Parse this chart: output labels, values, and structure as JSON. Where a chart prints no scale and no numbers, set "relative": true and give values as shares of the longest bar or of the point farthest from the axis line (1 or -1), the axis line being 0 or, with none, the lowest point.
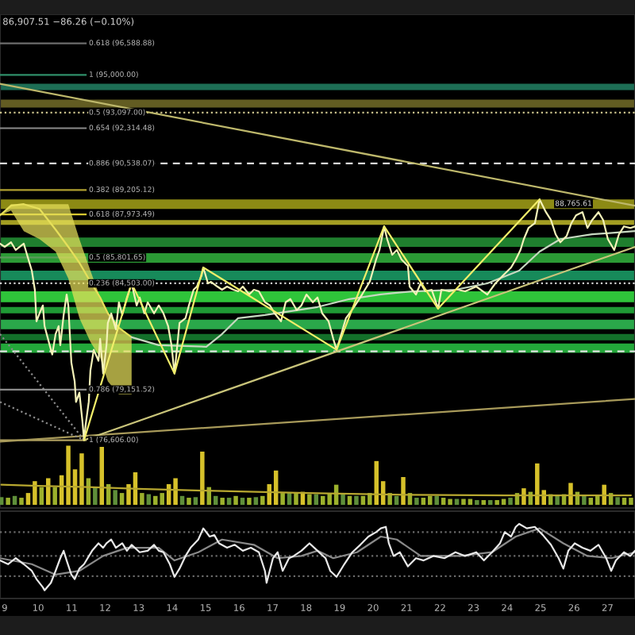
{
  "chart_data": [
    {
      "type": "line",
      "annotations": [
        "86,907.51 −86.26 (−0.10%)",
        {
          "text": "88,765.61",
          "x": 24.97,
          "y": 88730
        }
      ],
      "xlim": [
        8.86,
        27.82
      ],
      "ylim": [
        73190,
        98050
      ],
      "tick_labels": false,
      "bands": [
        {
          "axis": "y",
          "from": 94230,
          "to": 94550,
          "color": "#1d6e55"
        },
        {
          "axis": "y",
          "from": 93350,
          "to": 93750,
          "color": "#625c22"
        },
        {
          "axis": "y",
          "from": 88250,
          "to": 88730,
          "color": "#8c8a14"
        },
        {
          "axis": "y",
          "from": 87450,
          "to": 87690,
          "color": "#a39e22"
        },
        {
          "axis": "y",
          "from": 86340,
          "to": 86810,
          "color": "#1f7f2e"
        },
        {
          "axis": "y",
          "from": 85540,
          "to": 86020,
          "color": "#2b9a35"
        },
        {
          "axis": "y",
          "from": 84660,
          "to": 85140,
          "color": "#178a5a"
        },
        {
          "axis": "y",
          "from": 83550,
          "to": 84100,
          "color": "#2fc43a"
        },
        {
          "axis": "y",
          "from": 82990,
          "to": 83310,
          "color": "#1f9a35"
        },
        {
          "axis": "y",
          "from": 82190,
          "to": 82670,
          "color": "#2aa84a"
        },
        {
          "axis": "y",
          "from": 81630,
          "to": 81950,
          "color": "#13702a"
        },
        {
          "axis": "y",
          "from": 81000,
          "to": 81470,
          "color": "#23a83a"
        }
      ],
      "ref_lines": [
        {
          "axis": "y",
          "value": 96588.88,
          "label": "0.618 (96,588.88)",
          "color": "#6d6d6d"
        },
        {
          "axis": "y",
          "value": 95000,
          "label": "1 (95,000.00)",
          "color": "#2f8f6a"
        },
        {
          "axis": "y",
          "value": 93097,
          "label": "0.5 (93,097.00)",
          "color": "#c8c08a",
          "line_style": "dotted"
        },
        {
          "axis": "y",
          "value": 92314.48,
          "label": "0.654 (92,314.48)",
          "color": "#8a8a8a"
        },
        {
          "axis": "y",
          "value": 90538.07,
          "label": "0.886 (90,538.07)",
          "color": "#d8d8d8",
          "line_style": "dashed"
        },
        {
          "axis": "y",
          "value": 89205.12,
          "label": "0.382 (89,205.12)",
          "color": "#b0a030"
        },
        {
          "axis": "y",
          "value": 87973.49,
          "label": "0.618 (87,973.49)",
          "color": "#d8c830"
        },
        {
          "axis": "y",
          "value": 85801.65,
          "label": "0.5 (85,801.65)",
          "color": "#5a9a5a"
        },
        {
          "axis": "y",
          "value": 84503,
          "label": "0.236 (84,503.00)",
          "color": "#d0d0d0",
          "line_style": "dotted"
        },
        {
          "axis": "y",
          "value": 81075,
          "color": "#e0e0e0",
          "line_style": "dashed"
        },
        {
          "axis": "y",
          "value": 79151.52,
          "label": "0.786 (79,151.52)",
          "color": "#8a8a8a"
        },
        {
          "axis": "y",
          "value": 76606,
          "label": "1 (76,606.00)",
          "color": "#b0a060"
        }
      ],
      "series": [
        {
          "type": "line",
          "color": "#bdb76b",
          "x": [
            8.86,
            27.82
          ],
          "values": [
            94550,
            88410
          ]
        },
        {
          "type": "line",
          "color": "#a89a5a",
          "x": [
            8.86,
            27.82
          ],
          "values": [
            76530,
            78680
          ]
        },
        {
          "type": "line",
          "color": "#c9c47a",
          "x": [
            11.37,
            27.82
          ],
          "values": [
            76610,
            86340
          ]
        },
        {
          "type": "line",
          "color": "#8c8c8c",
          "line_style": "dotted",
          "x": [
            8.86,
            11.37
          ],
          "values": [
            81950,
            76610
          ]
        },
        {
          "type": "line",
          "color": "#8c8c8c",
          "line_style": "dotted",
          "x": [
            8.86,
            11.37
          ],
          "values": [
            78530,
            76610
          ]
        },
        {
          "type": "line",
          "color": "#e6df5a",
          "x": [
            8.86,
            9.19,
            9.57,
            10.04,
            10.52,
            10.9,
            11.23,
            11.56,
            11.85,
            12.08,
            12.41,
            12.79
          ],
          "values": [
            87930,
            88410,
            88490,
            88250,
            87210,
            86340,
            85540,
            84580,
            83790,
            82990,
            82270,
            81790
          ],
          "upper": [
            87930,
            88490,
            88490,
            88490,
            88490,
            88490,
            86730,
            85140,
            83790,
            82990,
            82270,
            81790
          ],
          "lower": [
            87930,
            88170,
            87130,
            86730,
            86100,
            84740,
            82750,
            81550,
            80760,
            79560,
            78920,
            78920
          ]
        },
        {
          "type": "line",
          "color": "#c6d8c0",
          "x": [
            12.79,
            13.6,
            15.02,
            15.49,
            15.97,
            16.77,
            17.72,
            18.34,
            19.29,
            20.23,
            21.18,
            22.46,
            23.41,
            24.36,
            24.97,
            25.59,
            26.54,
            27.82
          ],
          "values": [
            81790,
            81390,
            81310,
            81950,
            82750,
            82910,
            83150,
            83310,
            83710,
            83950,
            84100,
            84180,
            84500,
            85140,
            86100,
            86730,
            86970,
            87130
          ]
        },
        {
          "type": "line",
          "color": "#f4f2b8",
          "x": [
            8.86,
            9.0,
            9.19,
            9.33,
            9.57,
            9.71,
            9.81,
            9.9,
            9.95,
            10.04,
            10.14,
            10.19,
            10.38,
            10.42,
            10.52,
            10.61,
            10.66,
            10.76,
            10.85,
            10.9,
            10.99,
            11.09,
            11.13,
            11.23,
            11.32,
            11.37,
            11.42,
            11.51,
            11.56,
            11.66,
            11.8,
            11.85,
            11.94,
            12.04,
            12.08,
            12.18,
            12.32,
            12.41,
            12.51,
            12.65,
            12.79,
            12.94,
            13.03,
            13.17,
            13.27,
            13.46,
            13.6,
            13.74,
            13.88,
            13.98,
            14.07,
            14.22,
            14.4,
            14.5,
            14.64,
            14.74,
            14.88,
            14.93,
            15.07,
            15.16,
            15.35,
            15.49,
            15.64,
            15.83,
            15.97,
            16.11,
            16.3,
            16.44,
            16.59,
            16.77,
            16.92,
            17.06,
            17.25,
            17.39,
            17.53,
            17.72,
            17.86,
            18.01,
            18.2,
            18.34,
            18.48,
            18.67,
            18.81,
            18.91,
            19.05,
            19.19,
            19.43,
            19.67,
            19.9,
            20.09,
            20.19,
            20.33,
            20.42,
            20.57,
            20.71,
            20.85,
            21.04,
            21.09,
            21.28,
            21.42,
            21.56,
            21.75,
            21.94,
            22.04,
            22.27,
            22.51,
            22.75,
            23.08,
            23.41,
            23.65,
            23.88,
            24.12,
            24.26,
            24.4,
            24.5,
            24.64,
            24.83,
            24.97,
            25.16,
            25.31,
            25.45,
            25.59,
            25.78,
            25.92,
            26.06,
            26.25,
            26.4,
            26.54,
            26.73,
            26.87,
            27.01,
            27.2,
            27.34,
            27.49,
            27.68,
            27.82
          ],
          "values": [
            86500,
            86340,
            86570,
            86180,
            86500,
            85700,
            85140,
            84180,
            82590,
            82990,
            83390,
            82350,
            81160,
            80920,
            81950,
            82350,
            81390,
            82910,
            83940,
            83390,
            80520,
            79560,
            78530,
            79000,
            77570,
            76610,
            77410,
            78530,
            80120,
            81160,
            80600,
            81710,
            79960,
            81390,
            82510,
            82990,
            82190,
            83550,
            82910,
            83790,
            84500,
            83390,
            83790,
            82990,
            83550,
            82990,
            83390,
            82990,
            82350,
            81390,
            79960,
            82510,
            82750,
            83390,
            84180,
            84340,
            84900,
            85300,
            84500,
            84580,
            84340,
            84180,
            84340,
            84180,
            84100,
            84340,
            83940,
            84180,
            84100,
            83550,
            83390,
            82990,
            82590,
            83550,
            83710,
            83150,
            83390,
            83940,
            83550,
            83790,
            82990,
            82590,
            81710,
            81160,
            81950,
            82750,
            83310,
            83940,
            84580,
            85700,
            86180,
            87370,
            86730,
            85940,
            86180,
            85700,
            85380,
            84340,
            83940,
            84500,
            84100,
            84180,
            83230,
            84180,
            84100,
            84180,
            84100,
            84340,
            83940,
            84500,
            84900,
            85300,
            85700,
            86180,
            86730,
            87290,
            87530,
            88730,
            88090,
            87690,
            86970,
            86570,
            86890,
            87530,
            87930,
            88090,
            87290,
            87690,
            88090,
            87690,
            86730,
            86180,
            86970,
            87370,
            87290,
            87370
          ]
        },
        {
          "type": "line",
          "color": "#f2ee6a",
          "x": [
            11.37,
            12.79,
            14.07,
            14.93,
            18.91,
            20.33,
            21.94,
            24.97
          ],
          "values": [
            76610,
            84500,
            79960,
            85300,
            81160,
            87370,
            83230,
            88730
          ]
        }
      ]
    },
    {
      "type": "bar",
      "relative": true,
      "xlim": [
        8.86,
        27.82
      ],
      "tick_labels": false,
      "series": [
        {
          "type": "bar",
          "x": [
            8.9,
            9.1,
            9.3,
            9.5,
            9.7,
            9.9,
            10.1,
            10.3,
            10.5,
            10.7,
            10.9,
            11.1,
            11.3,
            11.5,
            11.7,
            11.9,
            12.1,
            12.3,
            12.5,
            12.7,
            12.9,
            13.1,
            13.3,
            13.5,
            13.7,
            13.9,
            14.1,
            14.3,
            14.5,
            14.7,
            14.9,
            15.1,
            15.3,
            15.5,
            15.7,
            15.9,
            16.1,
            16.3,
            16.5,
            16.7,
            16.9,
            17.1,
            17.3,
            17.5,
            17.7,
            17.9,
            18.1,
            18.3,
            18.5,
            18.7,
            18.9,
            19.1,
            19.3,
            19.5,
            19.7,
            19.9,
            20.1,
            20.3,
            20.5,
            20.7,
            20.9,
            21.1,
            21.3,
            21.5,
            21.7,
            21.9,
            22.1,
            22.3,
            22.5,
            22.7,
            22.9,
            23.1,
            23.3,
            23.5,
            23.7,
            23.9,
            24.1,
            24.3,
            24.5,
            24.7,
            24.9,
            25.1,
            25.3,
            25.5,
            25.7,
            25.9,
            26.1,
            26.3,
            26.5,
            26.7,
            26.9,
            27.1,
            27.3,
            27.5,
            27.7
          ],
          "values": [
            0.13,
            0.12,
            0.15,
            0.12,
            0.2,
            0.4,
            0.3,
            0.45,
            0.3,
            0.5,
            1,
            0.6,
            0.87,
            0.45,
            0.3,
            0.98,
            0.35,
            0.25,
            0.2,
            0.35,
            0.55,
            0.2,
            0.18,
            0.15,
            0.2,
            0.35,
            0.45,
            0.15,
            0.12,
            0.13,
            0.9,
            0.3,
            0.15,
            0.12,
            0.12,
            0.15,
            0.12,
            0.12,
            0.13,
            0.15,
            0.35,
            0.58,
            0.2,
            0.2,
            0.2,
            0.22,
            0.18,
            0.18,
            0.15,
            0.2,
            0.34,
            0.2,
            0.15,
            0.15,
            0.15,
            0.2,
            0.74,
            0.4,
            0.2,
            0.15,
            0.47,
            0.2,
            0.12,
            0.12,
            0.15,
            0.15,
            0.12,
            0.1,
            0.1,
            0.1,
            0.1,
            0.08,
            0.08,
            0.08,
            0.08,
            0.1,
            0.12,
            0.2,
            0.28,
            0.22,
            0.7,
            0.25,
            0.18,
            0.15,
            0.18,
            0.37,
            0.22,
            0.15,
            0.12,
            0.15,
            0.34,
            0.2,
            0.13,
            0.12,
            0.12
          ],
          "colors": [
            "#5f8f3a",
            "#9cb12c",
            "#5f8f3a",
            "#9cb12c",
            "#d6c12a",
            "#d6c12a",
            "#9cb12c",
            "#d6c12a",
            "#9cb12c",
            "#d6c12a",
            "#d6c12a",
            "#d6c12a",
            "#d6c12a",
            "#9cb12c",
            "#5f8f3a",
            "#d6c12a",
            "#9cb12c",
            "#5f8f3a",
            "#9cb12c",
            "#d6c12a",
            "#d6c12a",
            "#9cb12c",
            "#5f8f3a",
            "#9cb12c",
            "#9cb12c",
            "#d6c12a",
            "#d6c12a",
            "#5f8f3a",
            "#9cb12c",
            "#5f8f3a",
            "#d6c12a",
            "#9cb12c",
            "#5f8f3a",
            "#9cb12c",
            "#5f8f3a",
            "#9cb12c",
            "#5f8f3a",
            "#9cb12c",
            "#5f8f3a",
            "#9cb12c",
            "#d6c12a",
            "#d6c12a",
            "#9cb12c",
            "#5f8f3a",
            "#9cb12c",
            "#d6c12a",
            "#9cb12c",
            "#5f8f3a",
            "#9cb12c",
            "#9cb12c",
            "#9cb12c",
            "#5f8f3a",
            "#9cb12c",
            "#5f8f3a",
            "#9cb12c",
            "#9cb12c",
            "#d6c12a",
            "#d6c12a",
            "#9cb12c",
            "#5f8f3a",
            "#d6c12a",
            "#9cb12c",
            "#5f8f3a",
            "#9cb12c",
            "#9cb12c",
            "#5f8f3a",
            "#9cb12c",
            "#9cb12c",
            "#5f8f3a",
            "#9cb12c",
            "#9cb12c",
            "#5f8f3a",
            "#9cb12c",
            "#5f8f3a",
            "#9cb12c",
            "#9cb12c",
            "#5f8f3a",
            "#9cb12c",
            "#d6c12a",
            "#9cb12c",
            "#d6c12a",
            "#d6c12a",
            "#9cb12c",
            "#5f8f3a",
            "#9cb12c",
            "#d6c12a",
            "#9cb12c",
            "#5f8f3a",
            "#9cb12c",
            "#9cb12c",
            "#d6c12a",
            "#9cb12c",
            "#5f8f3a",
            "#9cb12c",
            "#9cb12c"
          ]
        },
        {
          "type": "line",
          "color": "#b8a830",
          "x": [
            8.9,
            10,
            11.5,
            13,
            15,
            18,
            21,
            24,
            27.7
          ],
          "values": [
            0.34,
            0.32,
            0.3,
            0.27,
            0.24,
            0.2,
            0.17,
            0.16,
            0.16
          ]
        }
      ]
    },
    {
      "type": "line",
      "relative": true,
      "xlim": [
        8.86,
        27.82
      ],
      "xticks": [
        9,
        10,
        11,
        12,
        13,
        14,
        15,
        16,
        17,
        18,
        19,
        20,
        21,
        22,
        23,
        24,
        25,
        26,
        27
      ],
      "tick_labels": "x",
      "ref_lines": [
        {
          "axis": "y",
          "value": 0.89,
          "color": "#6a6a6a",
          "line_style": "dotted"
        },
        {
          "axis": "y",
          "value": 0.57,
          "color": "#6a6a6a",
          "line_style": "dotted"
        },
        {
          "axis": "y",
          "value": 0.3,
          "color": "#6a6a6a",
          "line_style": "dotted"
        }
      ],
      "series": [
        {
          "color": "#8a8a8a",
          "x": [
            8.86,
            9.81,
            10.52,
            11.23,
            11.94,
            12.65,
            13.6,
            14.07,
            14.78,
            15.49,
            16.44,
            17.15,
            17.86,
            18.34,
            18.81,
            19.52,
            20.23,
            20.71,
            21.42,
            22.6,
            23.55,
            24.26,
            24.97,
            25.68,
            26.4,
            27.11,
            27.82
          ],
          "values": [
            0.54,
            0.46,
            0.32,
            0.37,
            0.57,
            0.68,
            0.68,
            0.51,
            0.62,
            0.79,
            0.72,
            0.54,
            0.57,
            0.64,
            0.54,
            0.62,
            0.83,
            0.79,
            0.57,
            0.57,
            0.62,
            0.83,
            0.94,
            0.74,
            0.57,
            0.54,
            0.62
          ]
        },
        {
          "color": "#e8e8e8",
          "x": [
            8.86,
            9.1,
            9.33,
            9.57,
            9.81,
            9.95,
            10.14,
            10.19,
            10.38,
            10.52,
            10.66,
            10.76,
            10.85,
            10.99,
            11.09,
            11.23,
            11.37,
            11.61,
            11.8,
            11.94,
            12.04,
            12.18,
            12.32,
            12.51,
            12.65,
            12.79,
            13.03,
            13.27,
            13.46,
            13.6,
            13.74,
            13.93,
            14.07,
            14.22,
            14.4,
            14.55,
            14.78,
            14.93,
            15.12,
            15.26,
            15.4,
            15.64,
            15.87,
            16.11,
            16.35,
            16.59,
            16.77,
            16.82,
            17.01,
            17.15,
            17.3,
            17.49,
            17.63,
            17.86,
            18.1,
            18.34,
            18.58,
            18.72,
            18.91,
            19.14,
            19.38,
            19.62,
            19.86,
            20.09,
            20.23,
            20.38,
            20.47,
            20.61,
            20.8,
            21.04,
            21.28,
            21.51,
            21.8,
            22.13,
            22.46,
            22.75,
            23.08,
            23.31,
            23.55,
            23.79,
            23.93,
            24.12,
            24.26,
            24.36,
            24.59,
            24.83,
            25.07,
            25.31,
            25.54,
            25.68,
            25.83,
            26.02,
            26.25,
            26.49,
            26.73,
            26.96,
            27.11,
            27.25,
            27.49,
            27.68,
            27.82
          ],
          "values": [
            0.51,
            0.46,
            0.54,
            0.46,
            0.37,
            0.26,
            0.15,
            0.11,
            0.21,
            0.37,
            0.54,
            0.64,
            0.51,
            0.32,
            0.26,
            0.4,
            0.46,
            0.64,
            0.74,
            0.68,
            0.74,
            0.79,
            0.68,
            0.74,
            0.64,
            0.72,
            0.62,
            0.64,
            0.72,
            0.64,
            0.62,
            0.46,
            0.29,
            0.4,
            0.57,
            0.68,
            0.79,
            0.94,
            0.83,
            0.85,
            0.74,
            0.68,
            0.72,
            0.64,
            0.68,
            0.62,
            0.37,
            0.21,
            0.54,
            0.62,
            0.37,
            0.54,
            0.57,
            0.64,
            0.74,
            0.64,
            0.54,
            0.37,
            0.29,
            0.46,
            0.62,
            0.72,
            0.83,
            0.89,
            0.94,
            0.96,
            0.74,
            0.57,
            0.62,
            0.43,
            0.54,
            0.51,
            0.57,
            0.54,
            0.62,
            0.57,
            0.62,
            0.51,
            0.62,
            0.74,
            0.89,
            0.83,
            0.96,
            1,
            0.94,
            0.96,
            0.85,
            0.72,
            0.54,
            0.4,
            0.64,
            0.74,
            0.68,
            0.64,
            0.72,
            0.54,
            0.37,
            0.51,
            0.62,
            0.57,
            0.64
          ]
        }
      ]
    }
  ]
}
